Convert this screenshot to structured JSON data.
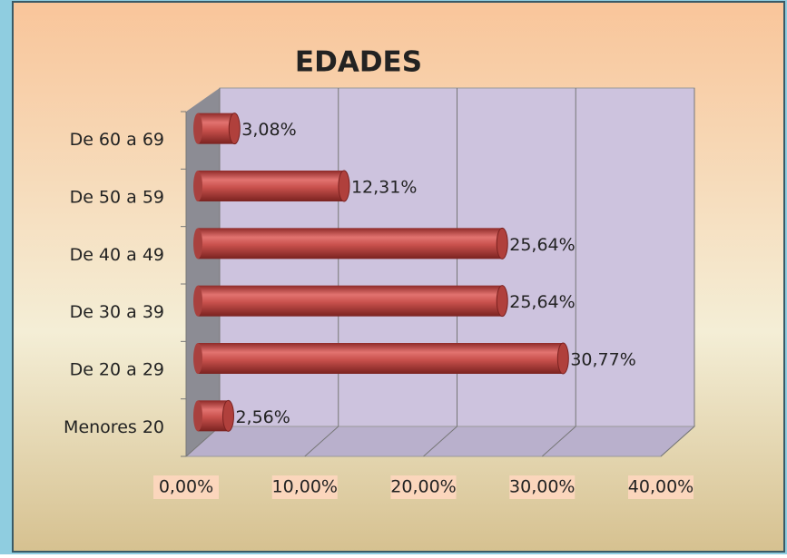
{
  "chart_data": {
    "type": "bar",
    "orientation": "horizontal",
    "title": "EDADES",
    "categories": [
      "De 60 a 69",
      "De 50 a 59",
      "De 40 a 49",
      "De 30 a 39",
      "De 20 a 29",
      "Menores 20"
    ],
    "values": [
      3.08,
      12.31,
      25.64,
      25.64,
      30.77,
      2.56
    ],
    "value_labels": [
      "3,08%",
      "12,31%",
      "25,64%",
      "25,64%",
      "30,77%",
      "2,56%"
    ],
    "color": "#c0504d",
    "xlim": [
      0,
      40
    ],
    "xticks": [
      {
        "value": 0,
        "label": "0,00%"
      },
      {
        "value": 10,
        "label": "10,00%"
      },
      {
        "value": 20,
        "label": "20,00%"
      },
      {
        "value": 30,
        "label": "30,00%"
      },
      {
        "value": 40,
        "label": "40,00%"
      }
    ],
    "grid": true
  }
}
